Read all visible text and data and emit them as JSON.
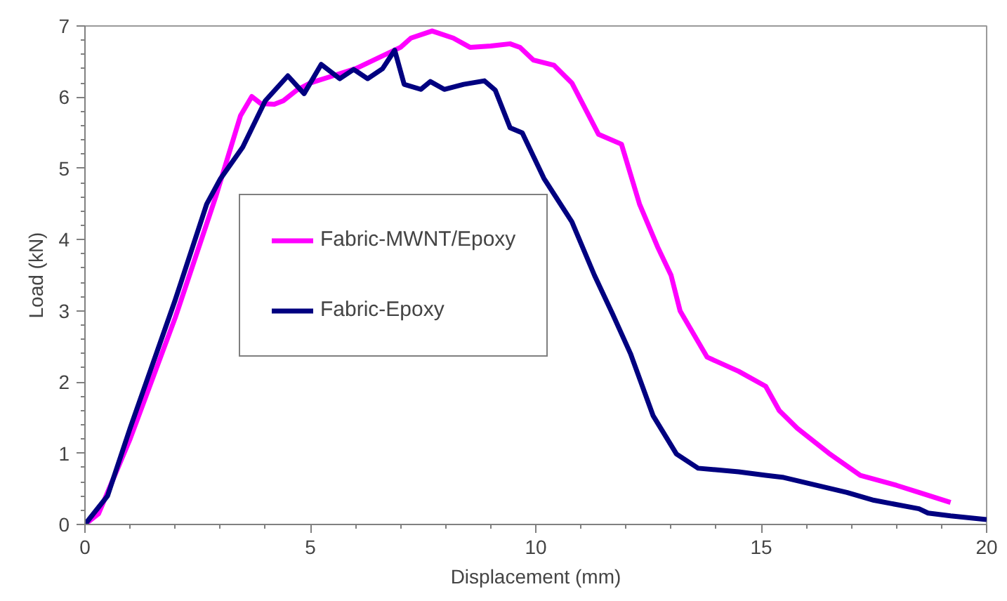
{
  "chart_data": {
    "type": "line",
    "xlabel": "Displacement (mm)",
    "ylabel": "Load (kN)",
    "xlim": [
      0,
      20
    ],
    "ylim": [
      0,
      7
    ],
    "xticks": [
      0,
      {
        "value": 1,
        "label": null
      },
      {
        "value": 2,
        "label": null
      },
      {
        "value": 3,
        "label": null
      },
      {
        "value": 4,
        "label": null
      },
      5,
      {
        "value": 6,
        "label": null
      },
      {
        "value": 7,
        "label": null
      },
      {
        "value": 8,
        "label": null
      },
      {
        "value": 9,
        "label": null
      },
      10,
      {
        "value": 11,
        "label": null
      },
      {
        "value": 12,
        "label": null
      },
      {
        "value": 13,
        "label": null
      },
      {
        "value": 14,
        "label": null
      },
      15,
      {
        "value": 16,
        "label": null
      },
      {
        "value": 17,
        "label": null
      },
      {
        "value": 18,
        "label": null
      },
      {
        "value": 19,
        "label": null
      },
      20
    ],
    "yticks": [
      0,
      {
        "value": 0.2,
        "label": null
      },
      {
        "value": 0.4,
        "label": null
      },
      {
        "value": 0.6,
        "label": null
      },
      {
        "value": 0.8,
        "label": null
      },
      1,
      {
        "value": 1.2,
        "label": null
      },
      {
        "value": 1.4,
        "label": null
      },
      {
        "value": 1.6,
        "label": null
      },
      {
        "value": 1.8,
        "label": null
      },
      2,
      {
        "value": 2.2,
        "label": null
      },
      {
        "value": 2.4,
        "label": null
      },
      {
        "value": 2.6,
        "label": null
      },
      {
        "value": 2.8,
        "label": null
      },
      3,
      {
        "value": 3.2,
        "label": null
      },
      {
        "value": 3.4,
        "label": null
      },
      {
        "value": 3.6,
        "label": null
      },
      {
        "value": 3.8,
        "label": null
      },
      4,
      {
        "value": 4.2,
        "label": null
      },
      {
        "value": 4.4,
        "label": null
      },
      {
        "value": 4.6,
        "label": null
      },
      {
        "value": 4.8,
        "label": null
      },
      5,
      {
        "value": 5.2,
        "label": null
      },
      {
        "value": 5.4,
        "label": null
      },
      {
        "value": 5.6,
        "label": null
      },
      {
        "value": 5.8,
        "label": null
      },
      6,
      {
        "value": 6.2,
        "label": null
      },
      {
        "value": 6.4,
        "label": null
      },
      {
        "value": 6.6,
        "label": null
      },
      {
        "value": 6.8,
        "label": null
      },
      7
    ],
    "grid": false,
    "legend": "left",
    "marker": "none",
    "line_style": "solid",
    "series": [
      {
        "name": "Fabric-MWNT/Epoxy",
        "color": "#ff00ff",
        "x": [
          0,
          0.3,
          1,
          2,
          2.9,
          3.45,
          3.7,
          3.9,
          4.2,
          4.4,
          4.7,
          5,
          5.5,
          6,
          6.5,
          7,
          7.23,
          7.7,
          8.17,
          8.54,
          9.0,
          9.43,
          9.65,
          9.95,
          10.4,
          10.8,
          11.39,
          11.9,
          12.3,
          12.7,
          13,
          13.2,
          13.8,
          14.5,
          15.1,
          15.4,
          15.8,
          16.5,
          17.2,
          18,
          18.5,
          19.2
        ],
        "values": [
          0,
          0.15,
          1.2,
          2.9,
          4.6,
          5.74,
          6.01,
          5.91,
          5.9,
          5.95,
          6.1,
          6.2,
          6.3,
          6.4,
          6.55,
          6.7,
          6.83,
          6.93,
          6.83,
          6.7,
          6.72,
          6.75,
          6.7,
          6.52,
          6.45,
          6.2,
          5.48,
          5.34,
          4.5,
          3.9,
          3.5,
          3.0,
          2.35,
          2.15,
          1.94,
          1.6,
          1.35,
          1.0,
          0.69,
          0.55,
          0.45,
          0.31
        ]
      },
      {
        "name": "Fabric-Epoxy",
        "color": "#000080",
        "x": [
          0,
          0.5,
          1,
          2,
          2.7,
          3,
          3.5,
          4,
          4.5,
          4.86,
          5.24,
          5.65,
          5.96,
          6.27,
          6.6,
          6.87,
          7.08,
          7.45,
          7.66,
          7.97,
          8.4,
          8.86,
          9.1,
          9.43,
          9.7,
          10.18,
          10.8,
          11.3,
          11.7,
          12.1,
          12.6,
          13.12,
          13.6,
          14.5,
          15.1,
          15.5,
          16.9,
          17.5,
          18.5,
          18.7,
          19.2,
          20
        ],
        "values": [
          0,
          0.4,
          1.35,
          3.15,
          4.5,
          4.85,
          5.3,
          5.95,
          6.3,
          6.05,
          6.46,
          6.26,
          6.39,
          6.26,
          6.4,
          6.66,
          6.18,
          6.11,
          6.22,
          6.11,
          6.18,
          6.23,
          6.1,
          5.57,
          5.5,
          4.86,
          4.25,
          3.5,
          2.96,
          2.4,
          1.53,
          0.99,
          0.79,
          0.74,
          0.69,
          0.66,
          0.45,
          0.34,
          0.22,
          0.16,
          0.12,
          0.07
        ]
      }
    ]
  }
}
